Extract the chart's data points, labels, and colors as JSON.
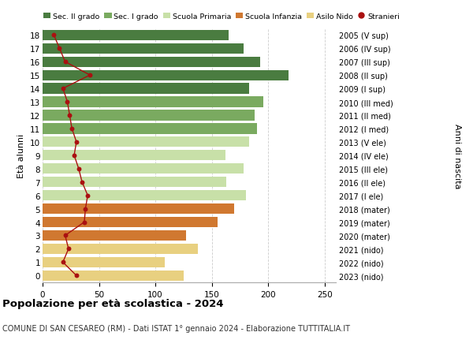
{
  "ages": [
    18,
    17,
    16,
    15,
    14,
    13,
    12,
    11,
    10,
    9,
    8,
    7,
    6,
    5,
    4,
    3,
    2,
    1,
    0
  ],
  "right_labels": [
    "2005 (V sup)",
    "2006 (IV sup)",
    "2007 (III sup)",
    "2008 (II sup)",
    "2009 (I sup)",
    "2010 (III med)",
    "2011 (II med)",
    "2012 (I med)",
    "2013 (V ele)",
    "2014 (IV ele)",
    "2015 (III ele)",
    "2016 (II ele)",
    "2017 (I ele)",
    "2018 (mater)",
    "2019 (mater)",
    "2020 (mater)",
    "2021 (nido)",
    "2022 (nido)",
    "2023 (nido)"
  ],
  "bar_values": [
    165,
    178,
    193,
    218,
    183,
    196,
    188,
    190,
    183,
    162,
    178,
    163,
    180,
    170,
    155,
    127,
    138,
    108,
    125
  ],
  "stranieri_values": [
    10,
    15,
    20,
    42,
    18,
    22,
    24,
    26,
    30,
    28,
    32,
    35,
    40,
    38,
    37,
    20,
    23,
    18,
    30
  ],
  "bar_colors": [
    "#4a7c40",
    "#4a7c40",
    "#4a7c40",
    "#4a7c40",
    "#4a7c40",
    "#7aaa60",
    "#7aaa60",
    "#7aaa60",
    "#c8e0a8",
    "#c8e0a8",
    "#c8e0a8",
    "#c8e0a8",
    "#c8e0a8",
    "#d07830",
    "#d07830",
    "#d07830",
    "#e8d080",
    "#e8d080",
    "#e8d080"
  ],
  "legend_labels": [
    "Sec. II grado",
    "Sec. I grado",
    "Scuola Primaria",
    "Scuola Infanzia",
    "Asilo Nido",
    "Stranieri"
  ],
  "legend_colors": [
    "#4a7c40",
    "#7aaa60",
    "#c8e0a8",
    "#d07830",
    "#e8d080",
    "#aa1010"
  ],
  "stranieri_color": "#aa1010",
  "title_bold": "Popolazione per età scolastica - 2024",
  "subtitle": "COMUNE DI SAN CESAREO (RM) - Dati ISTAT 1° gennaio 2024 - Elaborazione TUTTITALIA.IT",
  "ylabel": "Età alunni",
  "right_ylabel": "Anni di nascita",
  "xlim": [
    0,
    260
  ],
  "xticks": [
    0,
    50,
    100,
    150,
    200,
    250
  ],
  "background_color": "#ffffff",
  "grid_color": "#cccccc"
}
